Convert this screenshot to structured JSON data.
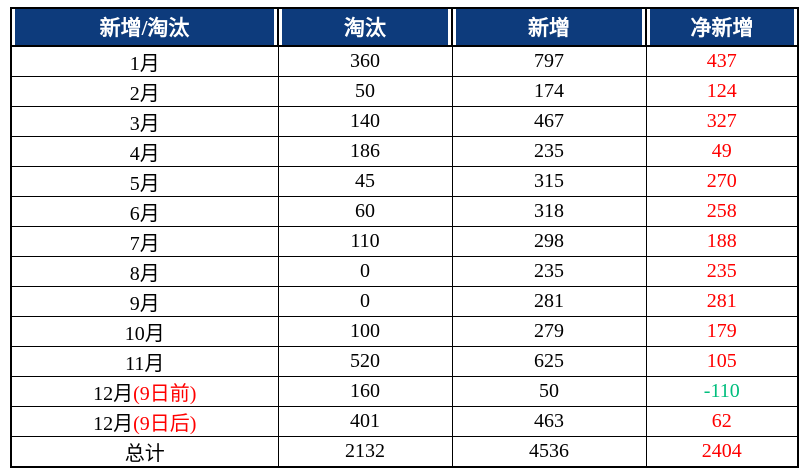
{
  "colors": {
    "header_bg": "#0D3B7C",
    "header_text": "#FFFFFF",
    "value_red": "#FF0000",
    "value_green": "#00BE7D",
    "text_black": "#000000",
    "border": "#000000"
  },
  "table": {
    "headers": [
      {
        "id": "month",
        "label": "新增/淘汰"
      },
      {
        "id": "eliminated",
        "label": "淘汰"
      },
      {
        "id": "added",
        "label": "新增"
      },
      {
        "id": "net",
        "label": "净新增"
      }
    ],
    "rows": [
      {
        "label": "1月",
        "label_note": "",
        "eliminated": "360",
        "added": "797",
        "net": "437",
        "net_color": "red"
      },
      {
        "label": "2月",
        "label_note": "",
        "eliminated": "50",
        "added": "174",
        "net": "124",
        "net_color": "red"
      },
      {
        "label": "3月",
        "label_note": "",
        "eliminated": "140",
        "added": "467",
        "net": "327",
        "net_color": "red"
      },
      {
        "label": "4月",
        "label_note": "",
        "eliminated": "186",
        "added": "235",
        "net": "49",
        "net_color": "red"
      },
      {
        "label": "5月",
        "label_note": "",
        "eliminated": "45",
        "added": "315",
        "net": "270",
        "net_color": "red"
      },
      {
        "label": "6月",
        "label_note": "",
        "eliminated": "60",
        "added": "318",
        "net": "258",
        "net_color": "red"
      },
      {
        "label": "7月",
        "label_note": "",
        "eliminated": "110",
        "added": "298",
        "net": "188",
        "net_color": "red"
      },
      {
        "label": "8月",
        "label_note": "",
        "eliminated": "0",
        "added": "235",
        "net": "235",
        "net_color": "red"
      },
      {
        "label": "9月",
        "label_note": "",
        "eliminated": "0",
        "added": "281",
        "net": "281",
        "net_color": "red"
      },
      {
        "label": "10月",
        "label_note": "",
        "eliminated": "100",
        "added": "279",
        "net": "179",
        "net_color": "red"
      },
      {
        "label": "11月",
        "label_note": "",
        "eliminated": "520",
        "added": "625",
        "net": "105",
        "net_color": "red"
      },
      {
        "label": "12月",
        "label_note": "(9日前)",
        "eliminated": "160",
        "added": "50",
        "net": "-110",
        "net_color": "green"
      },
      {
        "label": "12月",
        "label_note": "(9日后)",
        "eliminated": "401",
        "added": "463",
        "net": "62",
        "net_color": "red"
      },
      {
        "label": "总计",
        "label_note": "",
        "eliminated": "2132",
        "added": "4536",
        "net": "2404",
        "net_color": "red"
      }
    ]
  },
  "chart_data": {
    "type": "table",
    "title": "新增/淘汰",
    "columns": [
      "新增/淘汰",
      "淘汰",
      "新增",
      "净新增"
    ],
    "categories": [
      "1月",
      "2月",
      "3月",
      "4月",
      "5月",
      "6月",
      "7月",
      "8月",
      "9月",
      "10月",
      "11月",
      "12月(9日前)",
      "12月(9日后)",
      "总计"
    ],
    "series": [
      {
        "name": "淘汰",
        "values": [
          360,
          50,
          140,
          186,
          45,
          60,
          110,
          0,
          0,
          100,
          520,
          160,
          401,
          2132
        ]
      },
      {
        "name": "新增",
        "values": [
          797,
          174,
          467,
          235,
          315,
          318,
          298,
          235,
          281,
          279,
          625,
          50,
          463,
          4536
        ]
      },
      {
        "name": "净新增",
        "values": [
          437,
          124,
          327,
          49,
          270,
          258,
          188,
          235,
          281,
          179,
          105,
          -110,
          62,
          2404
        ]
      }
    ],
    "layout_hints": {
      "header_style": "navy background, white bold text",
      "net_column_color": "red (negative value green)",
      "december_note_color": "red",
      "grid": "black solid borders, all cells center-aligned"
    }
  }
}
